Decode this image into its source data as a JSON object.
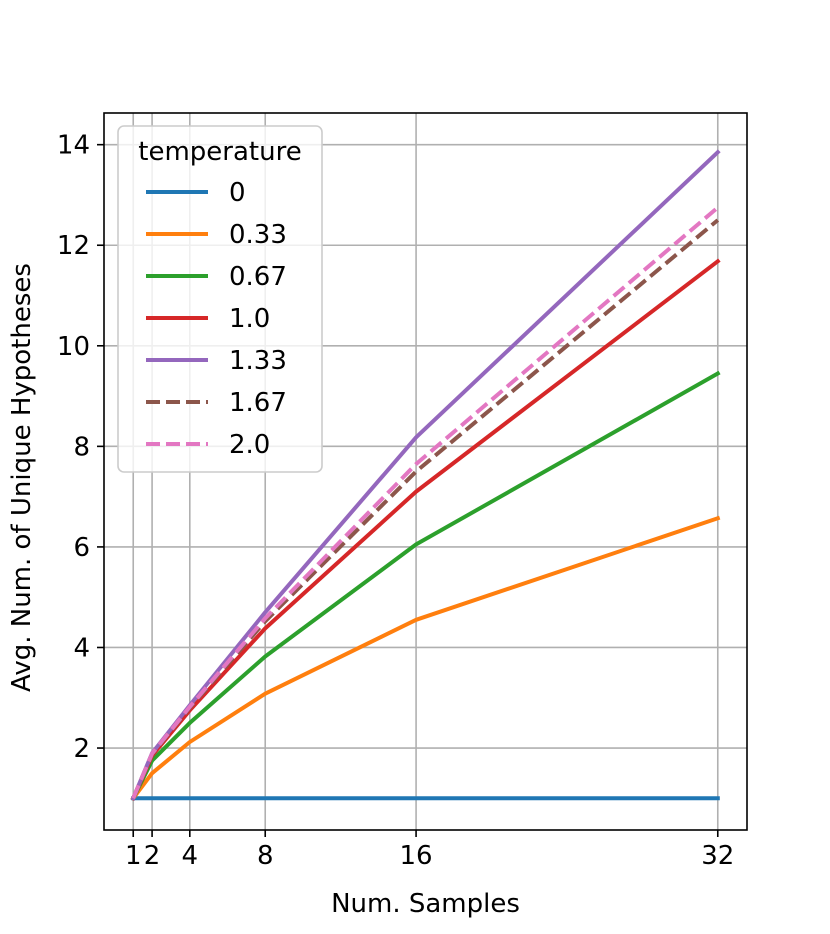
{
  "chart_data": {
    "type": "line",
    "title": "",
    "xlabel": "Num. Samples",
    "ylabel": "Avg. Num. of Unique Hypotheses",
    "xlim": [
      -0.55,
      33.55
    ],
    "ylim": [
      0.37,
      14.63
    ],
    "xticks": [
      1,
      2,
      4,
      8,
      16,
      32
    ],
    "yticks": [
      2,
      4,
      6,
      8,
      10,
      12,
      14
    ],
    "grid": true,
    "legend": {
      "title": "temperature",
      "position": "top-left"
    },
    "x": [
      1,
      2,
      4,
      8,
      16,
      32
    ],
    "series": [
      {
        "name": "0",
        "color": "#1f77b4",
        "dash": false,
        "values": [
          1,
          1,
          1,
          1,
          1,
          1
        ]
      },
      {
        "name": "0.33",
        "color": "#ff7f0e",
        "dash": false,
        "values": [
          1,
          1.5,
          2.12,
          3.08,
          4.55,
          6.57
        ]
      },
      {
        "name": "0.67",
        "color": "#2ca02c",
        "dash": false,
        "values": [
          1,
          1.75,
          2.5,
          3.82,
          6.05,
          9.45
        ]
      },
      {
        "name": "1.0",
        "color": "#d62728",
        "dash": false,
        "values": [
          1,
          1.85,
          2.75,
          4.38,
          7.1,
          11.68
        ]
      },
      {
        "name": "1.33",
        "color": "#9467bd",
        "dash": false,
        "values": [
          1,
          1.9,
          2.85,
          4.7,
          8.18,
          13.85
        ]
      },
      {
        "name": "1.67",
        "color": "#8c564b",
        "dash": true,
        "values": [
          1,
          1.88,
          2.8,
          4.52,
          7.5,
          12.5
        ]
      },
      {
        "name": "2.0",
        "color": "#e377c2",
        "dash": true,
        "values": [
          1,
          1.89,
          2.82,
          4.58,
          7.65,
          12.75
        ]
      }
    ]
  }
}
